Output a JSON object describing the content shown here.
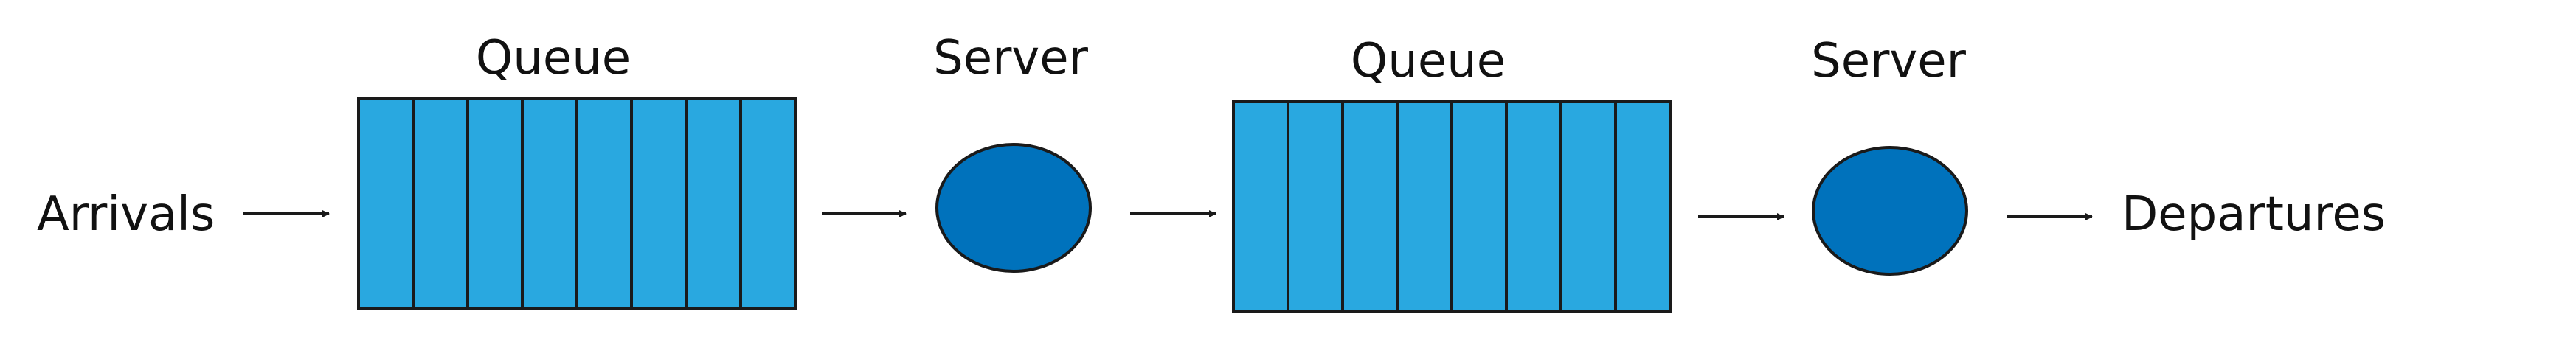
{
  "colors": {
    "queue_fill": "#29a8e0",
    "server_fill": "#0072bc",
    "stroke": "#1a1a1a",
    "text": "#111111"
  },
  "labels": {
    "arrivals": "Arrivals",
    "departures": "Departures"
  },
  "stages": [
    {
      "queue_label": "Queue",
      "server_label": "Server",
      "queue_slots": 8
    },
    {
      "queue_label": "Queue",
      "server_label": "Server",
      "queue_slots": 8
    }
  ]
}
